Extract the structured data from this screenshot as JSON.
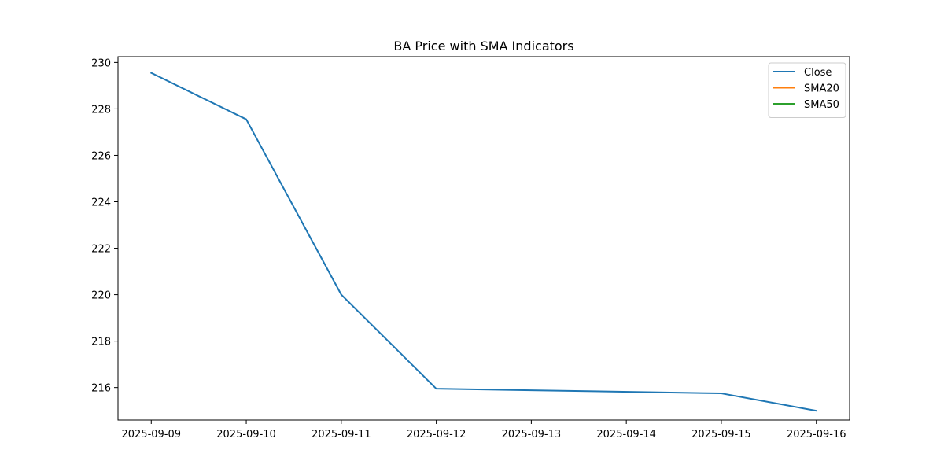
{
  "chart_data": {
    "type": "line",
    "title": "BA Price with SMA Indicators",
    "xlabel": "",
    "ylabel": "",
    "x": [
      "2025-09-09",
      "2025-09-10",
      "2025-09-11",
      "2025-09-12",
      "2025-09-15",
      "2025-09-16"
    ],
    "x_ticks": [
      "2025-09-09",
      "2025-09-10",
      "2025-09-11",
      "2025-09-12",
      "2025-09-13",
      "2025-09-14",
      "2025-09-15",
      "2025-09-16"
    ],
    "y_ticks": [
      216,
      218,
      220,
      222,
      224,
      226,
      228,
      230
    ],
    "ylim": [
      214.6,
      230.25
    ],
    "xlim": [
      "2025-09-08.65",
      "2025-09-16.35"
    ],
    "grid": false,
    "legend_position": "top-right",
    "series": [
      {
        "name": "Close",
        "color": "#1f77b4",
        "values": [
          229.55,
          227.55,
          220.0,
          215.95,
          215.75,
          215.0
        ]
      },
      {
        "name": "SMA20",
        "color": "#ff7f0e",
        "values": [
          null,
          null,
          null,
          null,
          null,
          null
        ]
      },
      {
        "name": "SMA50",
        "color": "#2ca02c",
        "values": [
          null,
          null,
          null,
          null,
          null,
          null
        ]
      }
    ]
  }
}
